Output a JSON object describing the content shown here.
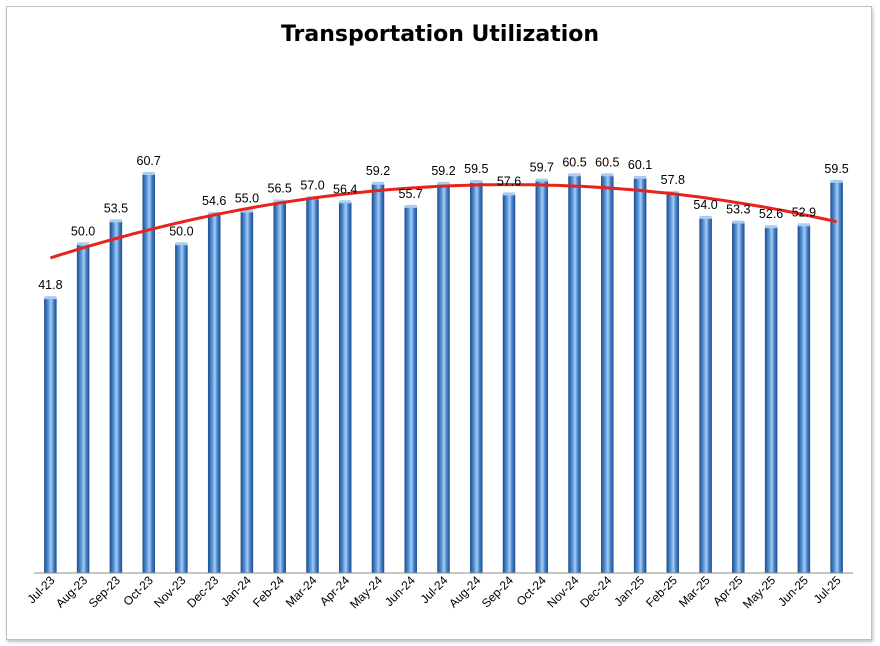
{
  "chart_data": {
    "type": "bar",
    "title": "Transportation Utilization",
    "categories": [
      "Jul-23",
      "Aug-23",
      "Sep-23",
      "Oct-23",
      "Nov-23",
      "Dec-23",
      "Jan-24",
      "Feb-24",
      "Mar-24",
      "Apr-24",
      "May-24",
      "Jun-24",
      "Jul-24",
      "Aug-24",
      "Sep-24",
      "Oct-24",
      "Nov-24",
      "Dec-24",
      "Jan-25",
      "Feb-25",
      "Mar-25",
      "Apr-25",
      "May-25",
      "Jun-25",
      "Jul-25"
    ],
    "values": [
      41.8,
      50.0,
      53.5,
      60.7,
      50.0,
      54.6,
      55.0,
      56.5,
      57.0,
      56.4,
      59.2,
      55.7,
      59.2,
      59.5,
      57.6,
      59.7,
      60.5,
      60.5,
      60.1,
      57.8,
      54.0,
      53.3,
      52.6,
      52.9,
      59.5
    ],
    "value_labels": [
      "41.8",
      "50.0",
      "53.5",
      "60.7",
      "50.0",
      "54.6",
      "55.0",
      "56.5",
      "57.0",
      "56.4",
      "59.2",
      "55.7",
      "59.2",
      "59.5",
      "57.6",
      "59.7",
      "60.5",
      "60.5",
      "60.1",
      "57.8",
      "54.0",
      "53.3",
      "52.6",
      "52.9",
      "59.5"
    ],
    "trendline": {
      "type": "polynomial",
      "color": "#e8221c"
    },
    "ylim": [
      0,
      68
    ],
    "grid": false,
    "legend": "none",
    "xlabel": "",
    "ylabel": "",
    "colors": {
      "bar": "#3f7fc9",
      "bar_highlight": "#a9ccf0",
      "bar_dark": "#1f4f8f",
      "trend": "#e8221c"
    }
  }
}
